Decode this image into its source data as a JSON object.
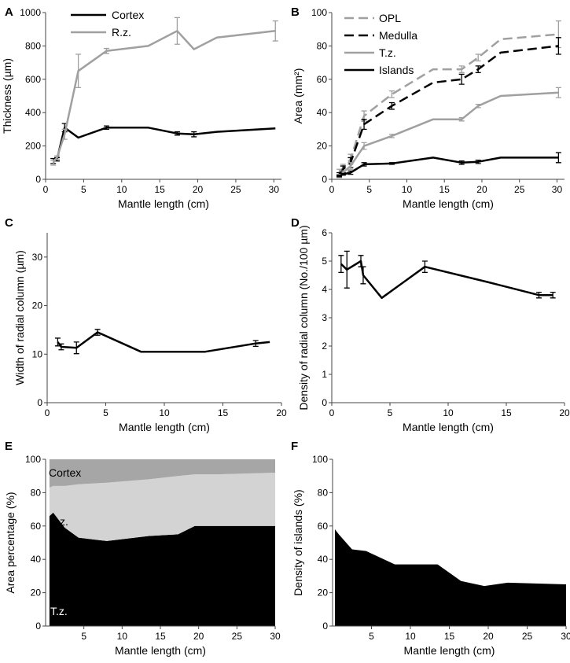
{
  "chart_data": [
    {
      "panel": "A",
      "type": "line",
      "xlabel": "Mantle length (cm)",
      "ylabel": "Thickness (µm)",
      "xlim": [
        0,
        31
      ],
      "ylim": [
        0,
        1000
      ],
      "xticks": [
        0,
        5,
        10,
        15,
        20,
        25,
        30
      ],
      "yticks": [
        0,
        200,
        400,
        600,
        800,
        1000
      ],
      "legend": "top-left",
      "series": [
        {
          "name": "Cortex",
          "color": "#000000",
          "dash": "solid",
          "x": [
            1,
            1.5,
            2.5,
            4.3,
            8,
            13.5,
            17.3,
            19.5,
            22.5,
            30.2
          ],
          "y": [
            110,
            120,
            310,
            250,
            310,
            310,
            275,
            270,
            285,
            305
          ],
          "err": [
            15,
            10,
            25,
            0,
            10,
            0,
            10,
            15,
            0,
            0
          ]
        },
        {
          "name": "R.z.",
          "color": "#a0a0a0",
          "dash": "solid",
          "x": [
            1,
            1.5,
            2.5,
            4.3,
            8,
            13.5,
            17.3,
            19.5,
            22.5,
            30.2
          ],
          "y": [
            100,
            130,
            270,
            650,
            770,
            800,
            890,
            780,
            850,
            890
          ],
          "err": [
            15,
            10,
            30,
            100,
            15,
            0,
            80,
            0,
            0,
            60
          ]
        }
      ]
    },
    {
      "panel": "B",
      "type": "line",
      "xlabel": "Mantle length (cm)",
      "ylabel": "Area (mm²)",
      "xlim": [
        0,
        31
      ],
      "ylim": [
        0,
        100
      ],
      "xticks": [
        0,
        5,
        10,
        15,
        20,
        25,
        30
      ],
      "yticks": [
        0,
        20,
        40,
        60,
        80,
        100
      ],
      "legend": "top-left",
      "series": [
        {
          "name": "OPL",
          "color": "#a0a0a0",
          "dash": "dashed",
          "x": [
            1,
            1.5,
            2.5,
            4.3,
            8,
            13.5,
            17.3,
            19.5,
            22.5,
            30.2
          ],
          "y": [
            4,
            7,
            12,
            38,
            51,
            66,
            66,
            73,
            84,
            87
          ],
          "err": [
            2,
            2,
            3,
            3,
            2,
            0,
            2,
            2,
            0,
            8
          ]
        },
        {
          "name": "Medulla",
          "color": "#000000",
          "dash": "dashed",
          "x": [
            1,
            1.5,
            2.5,
            4.3,
            8,
            13.5,
            17.3,
            19.5,
            22.5,
            30.2
          ],
          "y": [
            3,
            6,
            10,
            33,
            44,
            58,
            60,
            66,
            76,
            80
          ],
          "err": [
            1,
            2,
            3,
            3,
            2,
            0,
            3,
            2,
            0,
            5
          ]
        },
        {
          "name": "T.z.",
          "color": "#a0a0a0",
          "dash": "solid",
          "x": [
            1,
            1.5,
            2.5,
            4.3,
            8,
            13.5,
            17.3,
            19.5,
            22.5,
            30.2
          ],
          "y": [
            2,
            4,
            8,
            20,
            26,
            36,
            36,
            44,
            50,
            52
          ],
          "err": [
            1,
            1,
            2,
            2,
            1,
            0,
            1,
            1,
            0,
            3
          ]
        },
        {
          "name": "Islands",
          "color": "#000000",
          "dash": "solid",
          "x": [
            1,
            1.5,
            2.5,
            4.3,
            8,
            13.5,
            17.3,
            19.5,
            22.5,
            30.2
          ],
          "y": [
            2,
            3,
            4,
            9,
            9.5,
            13,
            10,
            10.5,
            13,
            13
          ],
          "err": [
            0.5,
            0.5,
            1,
            1,
            0.5,
            0,
            1,
            1,
            0,
            3
          ]
        }
      ]
    },
    {
      "panel": "C",
      "type": "line",
      "xlabel": "Mantle length (cm)",
      "ylabel": "Width of radial column (µm)",
      "xlim": [
        0,
        20
      ],
      "ylim": [
        0,
        35
      ],
      "xticks": [
        0,
        5,
        10,
        15,
        20
      ],
      "yticks": [
        0,
        10,
        20,
        30
      ],
      "series": [
        {
          "name": "Width",
          "color": "#000000",
          "dash": "solid",
          "x": [
            0.9,
            1.2,
            2.5,
            4.3,
            8,
            13.5,
            17.8,
            19
          ],
          "y": [
            12.5,
            11.5,
            11.3,
            14.5,
            10.5,
            10.5,
            12.2,
            12.5
          ],
          "err": [
            0.8,
            0.6,
            1.2,
            0.6,
            0,
            0,
            0.6,
            0
          ]
        }
      ]
    },
    {
      "panel": "D",
      "type": "line",
      "xlabel": "Mantle length (cm)",
      "ylabel": "Density of radial column (No./100 µm)",
      "xlim": [
        0,
        20
      ],
      "ylim": [
        0,
        6
      ],
      "xticks": [
        0,
        5,
        10,
        15,
        20
      ],
      "yticks": [
        0,
        1,
        2,
        3,
        4,
        5,
        6
      ],
      "series": [
        {
          "name": "Density",
          "color": "#000000",
          "dash": "solid",
          "x": [
            0.8,
            1.3,
            2.5,
            2.7,
            4.3,
            8,
            13.5,
            17.8,
            19
          ],
          "y": [
            4.9,
            4.7,
            5.0,
            4.5,
            3.7,
            4.8,
            4.25,
            3.8,
            3.8
          ],
          "err": [
            0.3,
            0.65,
            0.2,
            0.3,
            0,
            0.2,
            0,
            0.1,
            0.1
          ]
        }
      ]
    },
    {
      "panel": "E",
      "type": "area",
      "xlabel": "Mantle length (cm)",
      "ylabel": "Area percentage (%)",
      "xlim": [
        0,
        30
      ],
      "ylim": [
        0,
        100
      ],
      "xticks": [
        5,
        10,
        15,
        20,
        25,
        30
      ],
      "yticks": [
        0,
        20,
        40,
        60,
        80,
        100
      ],
      "x": [
        0.5,
        1,
        2.5,
        4.3,
        8,
        13.5,
        17.3,
        19.5,
        22.5,
        30
      ],
      "series": [
        {
          "name": "T.z.",
          "color": "#000000",
          "values": [
            66,
            68,
            59,
            53,
            51,
            54,
            55,
            60,
            60,
            60
          ]
        },
        {
          "name": "R.z.",
          "color": "#d3d3d3",
          "values": [
            17,
            16,
            25,
            32,
            35,
            34,
            35,
            31,
            31,
            32
          ]
        },
        {
          "name": "Cortex",
          "color": "#a6a6a6",
          "values": [
            17,
            16,
            16,
            15,
            14,
            12,
            10,
            9,
            9,
            8
          ]
        }
      ]
    },
    {
      "panel": "F",
      "type": "area",
      "xlabel": "Mantle length (cm)",
      "ylabel": "Density of islands (%)",
      "xlim": [
        0,
        30
      ],
      "ylim": [
        0,
        100
      ],
      "xticks": [
        5,
        10,
        15,
        20,
        25,
        30
      ],
      "yticks": [
        0,
        20,
        40,
        60,
        80,
        100
      ],
      "x": [
        0.3,
        0.8,
        2.5,
        4.3,
        8,
        10,
        13.5,
        16.5,
        19.5,
        22.5,
        30
      ],
      "series": [
        {
          "name": "Islands",
          "color": "#000000",
          "values": [
            58,
            55,
            46,
            45,
            37,
            37,
            37,
            27,
            24,
            26,
            25
          ]
        }
      ]
    }
  ]
}
